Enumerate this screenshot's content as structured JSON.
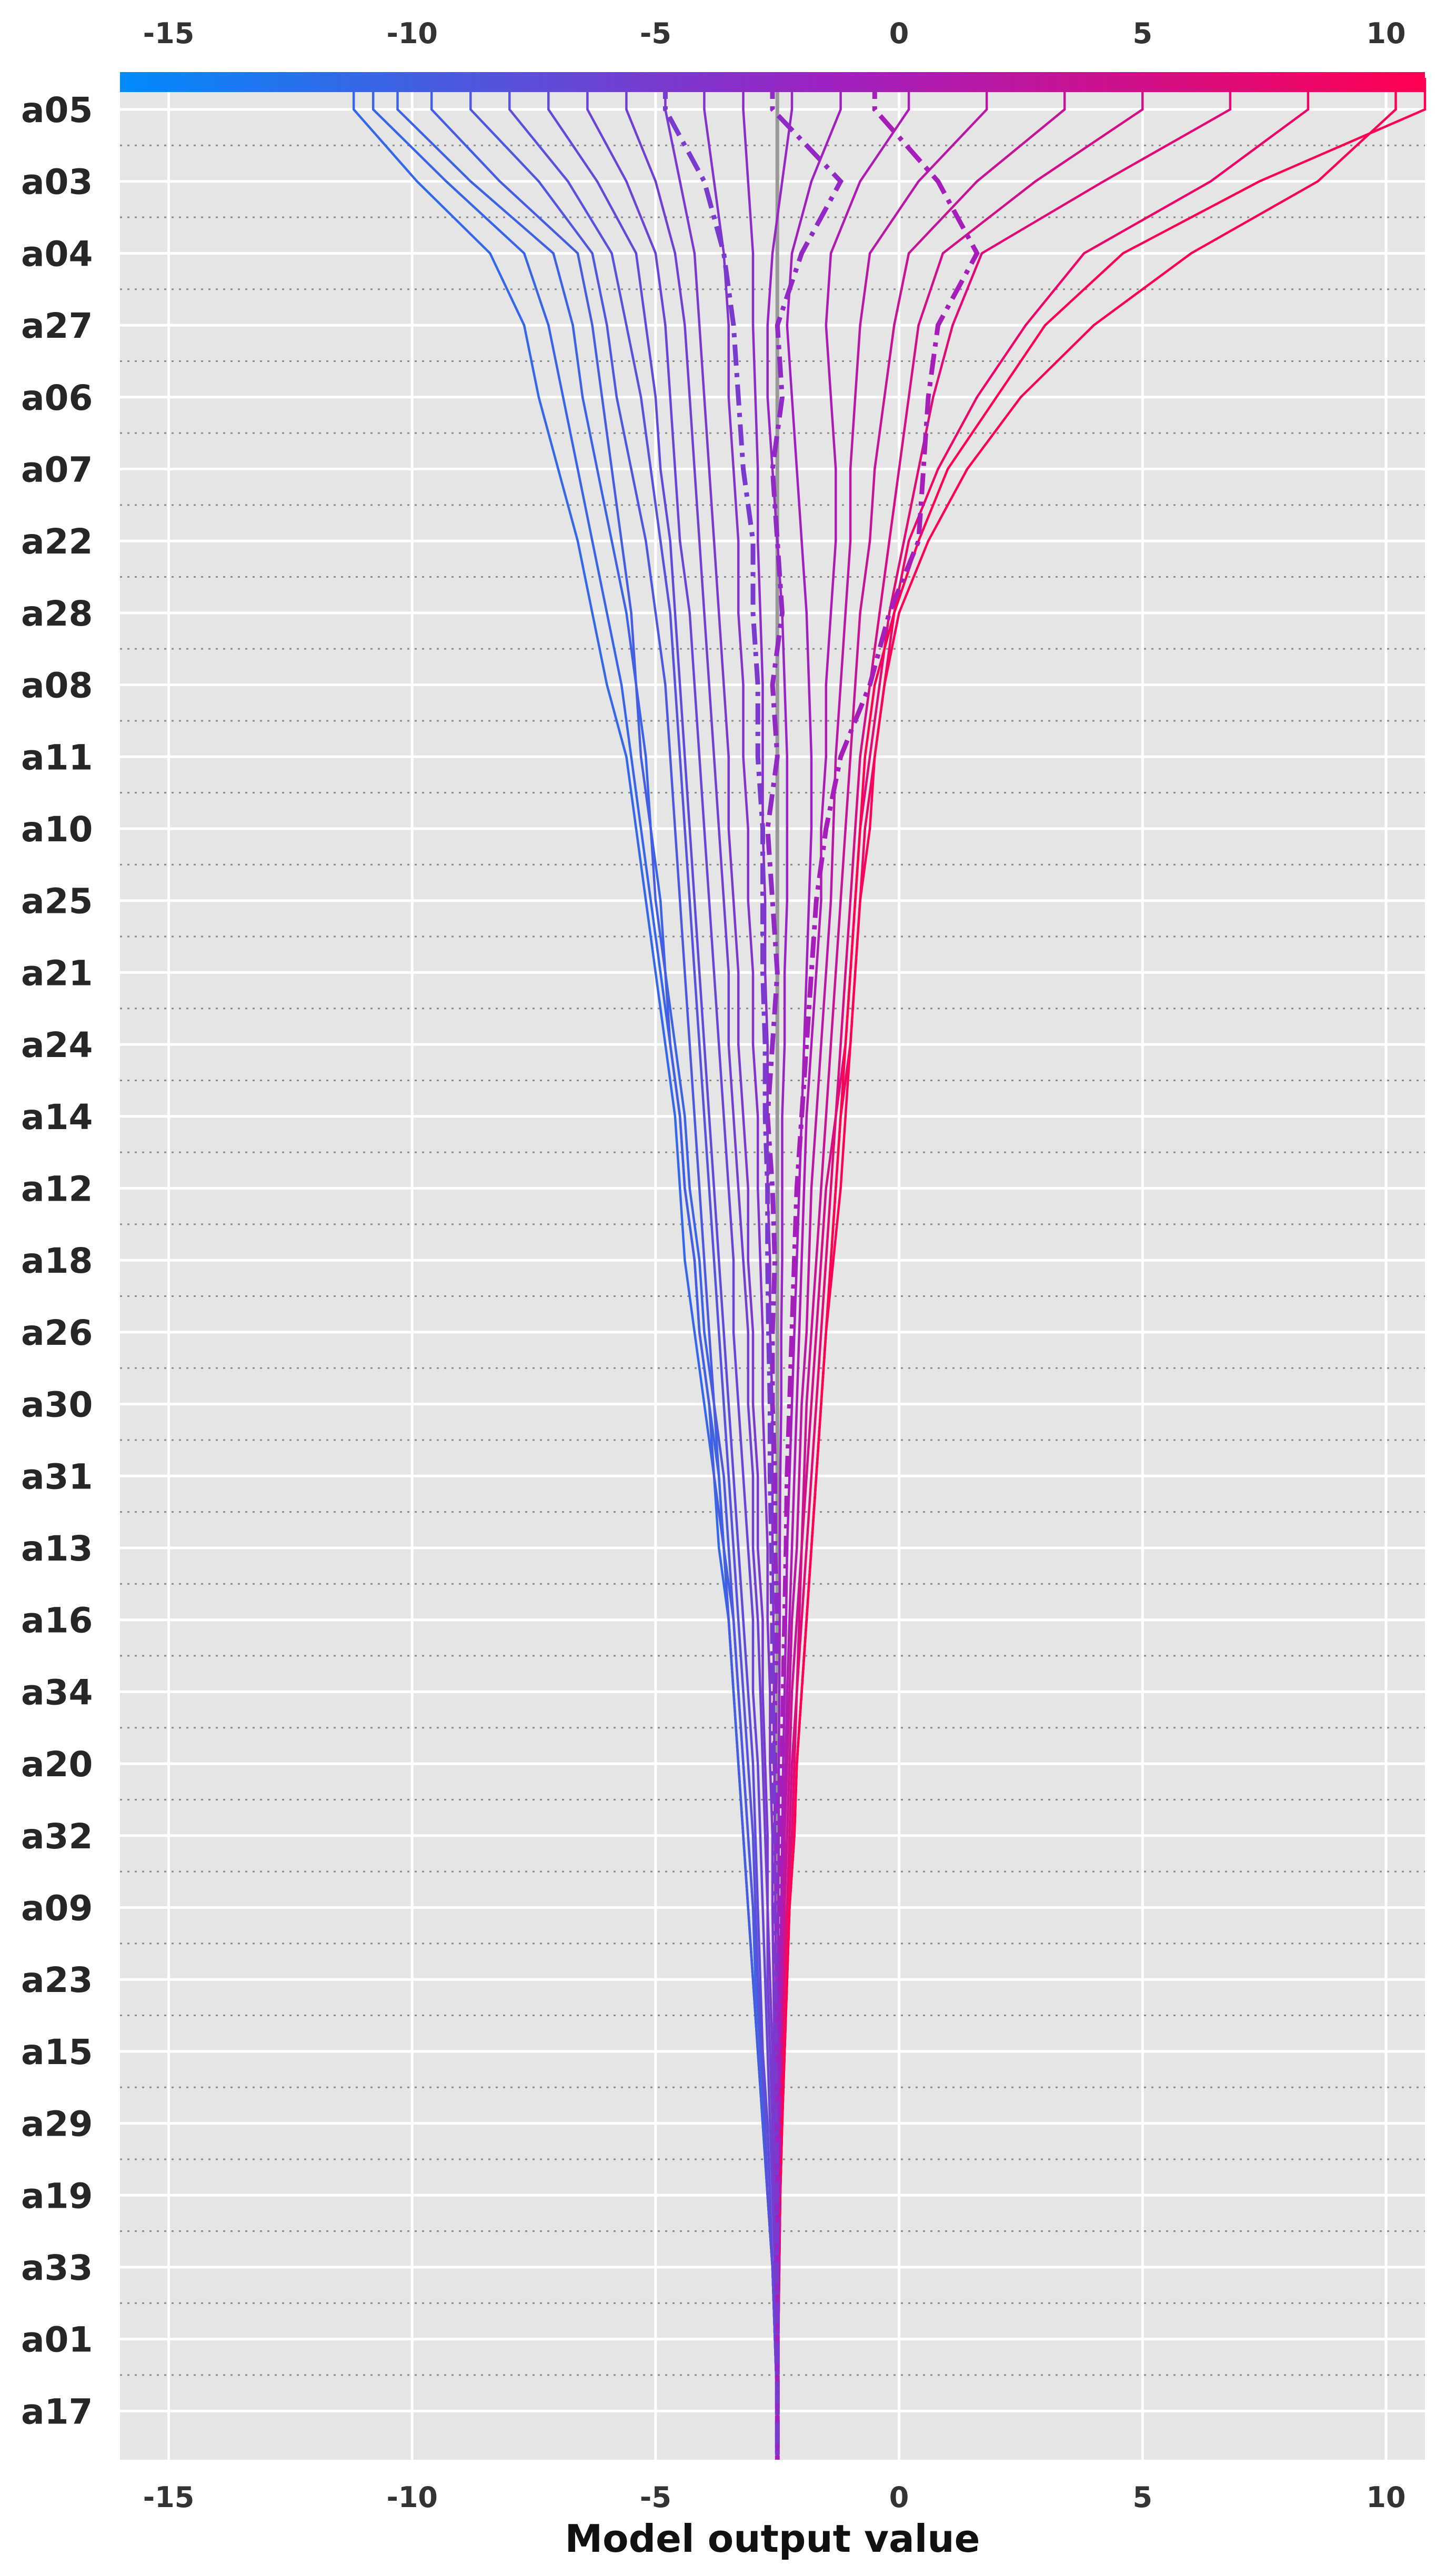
{
  "chart_data": {
    "type": "line",
    "title": "",
    "xlabel": "Model output value",
    "ylabel": "",
    "xlim": [
      -16,
      10.8
    ],
    "xticks": [
      -15,
      -10,
      -5,
      0,
      5,
      10
    ],
    "xtick_labels": [
      "-15",
      "-10",
      "-5",
      "0",
      "5",
      "10"
    ],
    "base_value": -2.5,
    "features": [
      "a05",
      "a03",
      "a04",
      "a27",
      "a06",
      "a07",
      "a22",
      "a28",
      "a08",
      "a11",
      "a10",
      "a25",
      "a21",
      "a24",
      "a14",
      "a12",
      "a18",
      "a26",
      "a30",
      "a31",
      "a13",
      "a16",
      "a34",
      "a20",
      "a32",
      "a09",
      "a23",
      "a15",
      "a29",
      "a19",
      "a33",
      "a01",
      "a17"
    ],
    "colorbar": {
      "low_color": "#008bfb",
      "mid_color": "#a020c0",
      "high_color": "#ff0052"
    },
    "grid": true,
    "legend": "none",
    "series": [
      {
        "final": -11.2,
        "path": [
          -11.2,
          -9.9,
          -8.4,
          -7.7,
          -7.4,
          -7.0,
          -6.6,
          -6.3,
          -6.0,
          -5.6,
          -5.4,
          -5.2,
          -5.0,
          -4.8,
          -4.6,
          -4.5,
          -4.4,
          -4.2,
          -4.0,
          -3.8,
          -3.7,
          -3.5,
          -3.4,
          -3.3,
          -3.2,
          -3.1,
          -3.0,
          -2.9,
          -2.8,
          -2.7,
          -2.6,
          -2.55,
          -2.5
        ]
      },
      {
        "final": -10.8,
        "path": [
          -10.8,
          -9.3,
          -7.7,
          -7.2,
          -6.9,
          -6.6,
          -6.3,
          -6.0,
          -5.7,
          -5.5,
          -5.3,
          -5.1,
          -4.9,
          -4.7,
          -4.5,
          -4.4,
          -4.2,
          -4.1,
          -3.9,
          -3.7,
          -3.6,
          -3.5,
          -3.4,
          -3.3,
          -3.2,
          -3.1,
          -3.0,
          -2.9,
          -2.8,
          -2.7,
          -2.6,
          -2.55,
          -2.5
        ]
      },
      {
        "final": -10.3,
        "path": [
          -10.3,
          -8.8,
          -7.1,
          -6.7,
          -6.5,
          -6.2,
          -5.9,
          -5.6,
          -5.4,
          -5.2,
          -5.1,
          -4.9,
          -4.8,
          -4.6,
          -4.4,
          -4.3,
          -4.1,
          -4.0,
          -3.8,
          -3.7,
          -3.6,
          -3.4,
          -3.3,
          -3.2,
          -3.1,
          -3.0,
          -2.95,
          -2.85,
          -2.75,
          -2.7,
          -2.6,
          -2.55,
          -2.5
        ]
      },
      {
        "final": -9.6,
        "path": [
          -9.6,
          -8.2,
          -6.6,
          -6.3,
          -6.1,
          -5.9,
          -5.7,
          -5.5,
          -5.4,
          -5.3,
          -5.1,
          -5.0,
          -4.8,
          -4.7,
          -4.5,
          -4.4,
          -4.2,
          -4.1,
          -3.9,
          -3.8,
          -3.6,
          -3.5,
          -3.4,
          -3.3,
          -3.2,
          -3.1,
          -3.0,
          -2.9,
          -2.8,
          -2.7,
          -2.6,
          -2.55,
          -2.5
        ]
      },
      {
        "final": -8.8,
        "path": [
          -8.8,
          -7.4,
          -6.3,
          -6.0,
          -5.8,
          -5.5,
          -5.2,
          -5.0,
          -4.8,
          -4.7,
          -4.6,
          -4.5,
          -4.4,
          -4.3,
          -4.2,
          -4.1,
          -4.0,
          -3.9,
          -3.8,
          -3.6,
          -3.5,
          -3.4,
          -3.3,
          -3.2,
          -3.1,
          -3.0,
          -2.9,
          -2.85,
          -2.75,
          -2.7,
          -2.6,
          -2.55,
          -2.5
        ]
      },
      {
        "final": -8.0,
        "path": [
          -8.0,
          -6.8,
          -5.9,
          -5.6,
          -5.3,
          -5.1,
          -4.9,
          -4.7,
          -4.6,
          -4.5,
          -4.4,
          -4.3,
          -4.2,
          -4.1,
          -4.0,
          -3.9,
          -3.8,
          -3.7,
          -3.6,
          -3.5,
          -3.4,
          -3.3,
          -3.2,
          -3.1,
          -3.0,
          -2.95,
          -2.9,
          -2.8,
          -2.75,
          -2.7,
          -2.6,
          -2.55,
          -2.5
        ]
      },
      {
        "final": -7.2,
        "path": [
          -7.2,
          -6.2,
          -5.4,
          -5.2,
          -5.0,
          -4.9,
          -4.7,
          -4.6,
          -4.5,
          -4.4,
          -4.3,
          -4.2,
          -4.1,
          -4.0,
          -3.9,
          -3.8,
          -3.7,
          -3.6,
          -3.5,
          -3.4,
          -3.3,
          -3.2,
          -3.1,
          -3.0,
          -2.95,
          -2.9,
          -2.85,
          -2.8,
          -2.7,
          -2.65,
          -2.6,
          -2.55,
          -2.5
        ]
      },
      {
        "final": -6.4,
        "path": [
          -6.4,
          -5.6,
          -5.0,
          -4.8,
          -4.7,
          -4.6,
          -4.5,
          -4.3,
          -4.2,
          -4.1,
          -4.0,
          -3.9,
          -3.8,
          -3.7,
          -3.6,
          -3.5,
          -3.4,
          -3.4,
          -3.3,
          -3.2,
          -3.1,
          -3.0,
          -3.0,
          -2.9,
          -2.85,
          -2.8,
          -2.75,
          -2.7,
          -2.65,
          -2.6,
          -2.55,
          -2.52,
          -2.5
        ]
      },
      {
        "final": -5.6,
        "path": [
          -5.6,
          -5.0,
          -4.6,
          -4.4,
          -4.3,
          -4.2,
          -4.1,
          -4.0,
          -3.9,
          -3.8,
          -3.7,
          -3.6,
          -3.5,
          -3.5,
          -3.4,
          -3.3,
          -3.2,
          -3.1,
          -3.1,
          -3.0,
          -3.0,
          -2.9,
          -2.85,
          -2.8,
          -2.75,
          -2.7,
          -2.7,
          -2.65,
          -2.6,
          -2.58,
          -2.55,
          -2.52,
          -2.5
        ]
      },
      {
        "final": -4.8,
        "path": [
          -4.8,
          -4.5,
          -4.2,
          -4.1,
          -4.0,
          -3.9,
          -3.8,
          -3.7,
          -3.6,
          -3.5,
          -3.5,
          -3.4,
          -3.3,
          -3.3,
          -3.2,
          -3.1,
          -3.1,
          -3.0,
          -3.0,
          -2.9,
          -2.9,
          -2.8,
          -2.8,
          -2.75,
          -2.7,
          -2.7,
          -2.65,
          -2.6,
          -2.6,
          -2.57,
          -2.55,
          -2.52,
          -2.5
        ]
      },
      {
        "final": -4.0,
        "path": [
          -4.0,
          -3.8,
          -3.6,
          -3.5,
          -3.5,
          -3.4,
          -3.3,
          -3.3,
          -3.2,
          -3.2,
          -3.1,
          -3.1,
          -3.0,
          -3.0,
          -2.9,
          -2.9,
          -2.85,
          -2.8,
          -2.8,
          -2.75,
          -2.7,
          -2.7,
          -2.65,
          -2.65,
          -2.6,
          -2.6,
          -2.58,
          -2.56,
          -2.55,
          -2.53,
          -2.52,
          -2.51,
          -2.5
        ]
      },
      {
        "final": -3.2,
        "path": [
          -3.2,
          -3.1,
          -3.0,
          -3.0,
          -2.95,
          -2.9,
          -2.9,
          -2.85,
          -2.8,
          -2.8,
          -2.8,
          -2.75,
          -2.75,
          -2.7,
          -2.7,
          -2.7,
          -2.65,
          -2.65,
          -2.6,
          -2.6,
          -2.6,
          -2.58,
          -2.57,
          -2.56,
          -2.55,
          -2.54,
          -2.53,
          -2.53,
          -2.52,
          -2.52,
          -2.51,
          -2.5,
          -2.5
        ]
      },
      {
        "final": -2.2,
        "path": [
          -2.2,
          -2.4,
          -2.6,
          -2.7,
          -2.7,
          -2.6,
          -2.5,
          -2.4,
          -2.35,
          -2.3,
          -2.3,
          -2.3,
          -2.35,
          -2.35,
          -2.4,
          -2.4,
          -2.4,
          -2.42,
          -2.42,
          -2.44,
          -2.45,
          -2.45,
          -2.46,
          -2.47,
          -2.47,
          -2.48,
          -2.48,
          -2.49,
          -2.49,
          -2.49,
          -2.5,
          -2.5,
          -2.5
        ]
      },
      {
        "final": -1.2,
        "path": [
          -1.2,
          -1.8,
          -2.2,
          -2.3,
          -2.2,
          -2.1,
          -2.0,
          -1.9,
          -1.85,
          -1.8,
          -1.8,
          -1.85,
          -1.9,
          -1.95,
          -2.0,
          -2.05,
          -2.1,
          -2.15,
          -2.2,
          -2.25,
          -2.3,
          -2.32,
          -2.35,
          -2.38,
          -2.4,
          -2.42,
          -2.44,
          -2.45,
          -2.46,
          -2.47,
          -2.48,
          -2.49,
          -2.5
        ]
      },
      {
        "final": 0.2,
        "path": [
          0.2,
          -0.8,
          -1.4,
          -1.5,
          -1.4,
          -1.3,
          -1.3,
          -1.4,
          -1.5,
          -1.5,
          -1.6,
          -1.6,
          -1.7,
          -1.8,
          -1.9,
          -1.95,
          -2.0,
          -2.05,
          -2.1,
          -2.15,
          -2.2,
          -2.25,
          -2.3,
          -2.33,
          -2.36,
          -2.4,
          -2.42,
          -2.44,
          -2.45,
          -2.46,
          -2.47,
          -2.49,
          -2.5
        ]
      },
      {
        "final": 1.8,
        "path": [
          1.8,
          0.4,
          -0.6,
          -0.8,
          -0.9,
          -1.0,
          -1.0,
          -1.1,
          -1.2,
          -1.3,
          -1.35,
          -1.4,
          -1.5,
          -1.6,
          -1.7,
          -1.8,
          -1.85,
          -1.9,
          -2.0,
          -2.05,
          -2.1,
          -2.2,
          -2.25,
          -2.3,
          -2.35,
          -2.38,
          -2.4,
          -2.42,
          -2.44,
          -2.46,
          -2.47,
          -2.49,
          -2.5
        ]
      },
      {
        "final": 3.4,
        "path": [
          3.4,
          1.6,
          0.2,
          -0.1,
          -0.3,
          -0.5,
          -0.6,
          -0.8,
          -0.9,
          -1.0,
          -1.1,
          -1.2,
          -1.3,
          -1.4,
          -1.5,
          -1.6,
          -1.7,
          -1.8,
          -1.9,
          -1.95,
          -2.0,
          -2.1,
          -2.2,
          -2.25,
          -2.3,
          -2.35,
          -2.38,
          -2.41,
          -2.44,
          -2.46,
          -2.47,
          -2.49,
          -2.5
        ]
      },
      {
        "final": 5.0,
        "path": [
          5.0,
          2.8,
          0.9,
          0.4,
          0.2,
          0.0,
          -0.2,
          -0.4,
          -0.6,
          -0.8,
          -0.9,
          -1.0,
          -1.1,
          -1.2,
          -1.3,
          -1.5,
          -1.6,
          -1.7,
          -1.8,
          -1.9,
          -2.0,
          -2.05,
          -2.1,
          -2.2,
          -2.25,
          -2.3,
          -2.35,
          -2.4,
          -2.43,
          -2.45,
          -2.47,
          -2.49,
          -2.5
        ]
      },
      {
        "final": 6.8,
        "path": [
          6.8,
          4.2,
          1.7,
          1.1,
          0.7,
          0.4,
          0.1,
          -0.2,
          -0.4,
          -0.6,
          -0.8,
          -0.9,
          -1.0,
          -1.1,
          -1.3,
          -1.4,
          -1.5,
          -1.6,
          -1.7,
          -1.8,
          -1.9,
          -2.0,
          -2.1,
          -2.15,
          -2.2,
          -2.3,
          -2.35,
          -2.4,
          -2.42,
          -2.45,
          -2.47,
          -2.49,
          -2.5
        ]
      },
      {
        "final": 8.4,
        "path": [
          8.4,
          6.4,
          3.8,
          2.6,
          1.6,
          0.8,
          0.2,
          -0.1,
          -0.3,
          -0.5,
          -0.7,
          -0.8,
          -0.9,
          -1.0,
          -1.2,
          -1.3,
          -1.4,
          -1.5,
          -1.6,
          -1.7,
          -1.8,
          -1.9,
          -2.0,
          -2.1,
          -2.15,
          -2.25,
          -2.3,
          -2.35,
          -2.4,
          -2.44,
          -2.46,
          -2.48,
          -2.5
        ]
      },
      {
        "final": 10.2,
        "path": [
          10.2,
          8.6,
          6.0,
          4.0,
          2.5,
          1.4,
          0.6,
          0.0,
          -0.3,
          -0.5,
          -0.6,
          -0.8,
          -0.9,
          -1.0,
          -1.1,
          -1.2,
          -1.35,
          -1.5,
          -1.6,
          -1.7,
          -1.8,
          -1.9,
          -2.0,
          -2.1,
          -2.15,
          -2.25,
          -2.3,
          -2.35,
          -2.4,
          -2.44,
          -2.46,
          -2.48,
          -2.5
        ]
      },
      {
        "final": 10.8,
        "path": [
          10.8,
          7.4,
          4.6,
          3.0,
          2.0,
          1.0,
          0.4,
          -0.1,
          -0.5,
          -0.7,
          -0.8,
          -0.9,
          -1.0,
          -1.1,
          -1.2,
          -1.3,
          -1.4,
          -1.5,
          -1.6,
          -1.7,
          -1.8,
          -1.9,
          -2.0,
          -2.1,
          -2.15,
          -2.25,
          -2.3,
          -2.35,
          -2.4,
          -2.44,
          -2.46,
          -2.48,
          -2.5
        ]
      },
      {
        "final": -0.5,
        "dashed": true,
        "path": [
          -0.5,
          0.8,
          1.6,
          0.8,
          0.6,
          0.5,
          0.4,
          -0.2,
          -0.6,
          -1.2,
          -1.5,
          -1.7,
          -1.8,
          -1.9,
          -2.0,
          -2.1,
          -2.15,
          -2.2,
          -2.25,
          -2.3,
          -2.32,
          -2.35,
          -2.38,
          -2.4,
          -2.42,
          -2.44,
          -2.45,
          -2.46,
          -2.47,
          -2.48,
          -2.49,
          -2.5,
          -2.5
        ]
      },
      {
        "final": -2.6,
        "dashed": true,
        "path": [
          -2.6,
          -1.2,
          -2.0,
          -2.5,
          -2.4,
          -2.6,
          -2.5,
          -2.4,
          -2.6,
          -2.5,
          -2.7,
          -2.6,
          -2.5,
          -2.6,
          -2.7,
          -2.6,
          -2.55,
          -2.6,
          -2.6,
          -2.55,
          -2.55,
          -2.5,
          -2.55,
          -2.55,
          -2.5,
          -2.52,
          -2.5,
          -2.51,
          -2.5,
          -2.5,
          -2.5,
          -2.5,
          -2.5
        ]
      },
      {
        "final": -4.8,
        "dashed": true,
        "path": [
          -4.8,
          -4.0,
          -3.6,
          -3.4,
          -3.3,
          -3.2,
          -3.0,
          -3.0,
          -2.9,
          -2.9,
          -2.8,
          -2.8,
          -2.8,
          -2.75,
          -2.75,
          -2.7,
          -2.7,
          -2.68,
          -2.65,
          -2.65,
          -2.62,
          -2.6,
          -2.6,
          -2.58,
          -2.57,
          -2.56,
          -2.55,
          -2.54,
          -2.53,
          -2.52,
          -2.51,
          -2.5,
          -2.5
        ]
      }
    ]
  }
}
